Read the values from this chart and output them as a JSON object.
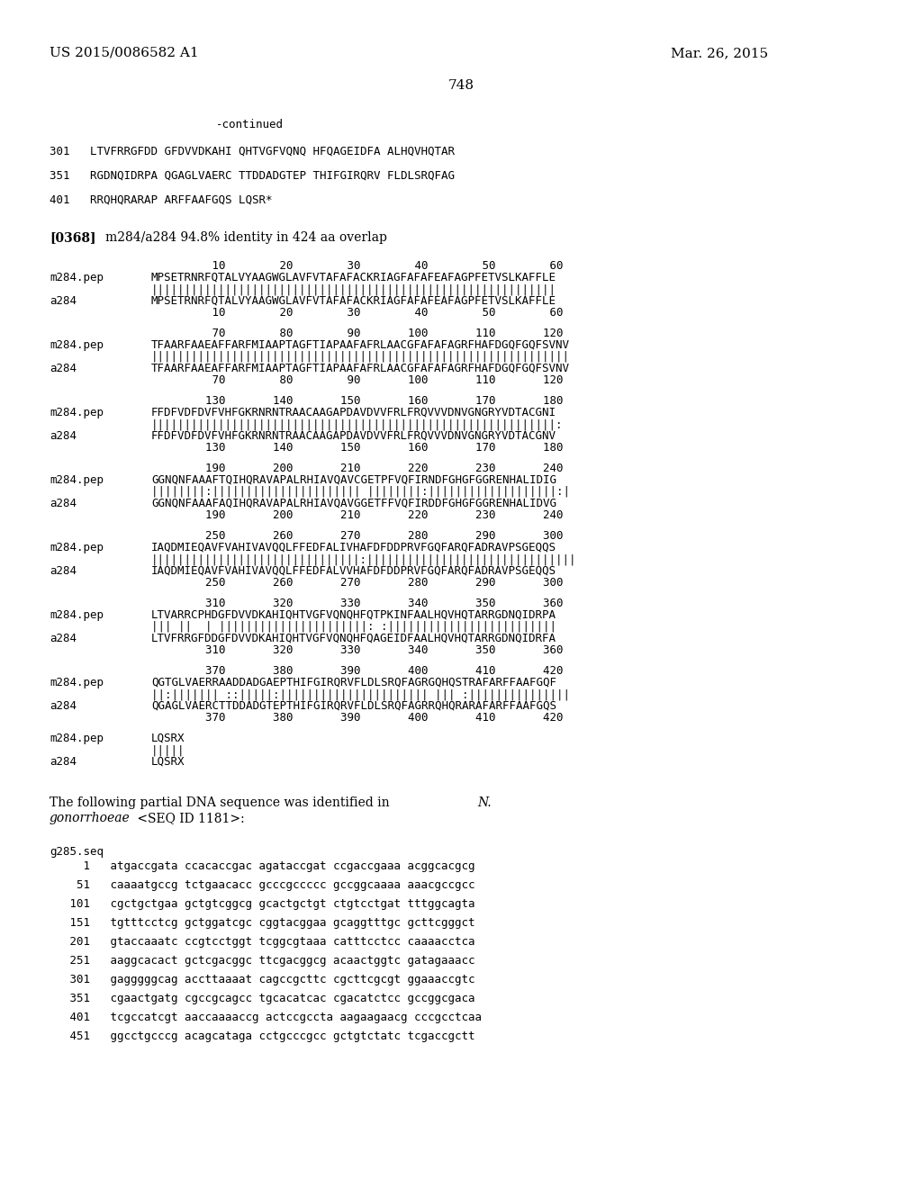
{
  "background_color": "#ffffff",
  "header_left": "US 2015/0086582 A1",
  "header_right": "Mar. 26, 2015",
  "page_number": "748",
  "continued_label": "-continued",
  "seq_lines": [
    "301   LTVFRRGFDD GFDVVDKAHI QHTVGFVQNQ HFQAGEIDFA ALHQVHQTAR",
    "351   RGDNQIDRPA QGAGLVAERC TTDDADGTEP THIFGIRQRV FLDLSRQFAG",
    "401   RRQHQRARAP ARFFAAFGQS LQSR*"
  ],
  "paragraph_label": "[0368]",
  "paragraph_text": "m284/a284 94.8% identity in 424 aa overlap",
  "alignment_blocks": [
    {
      "nums_top": "         10        20        30        40        50        60",
      "line1_label": "m284.pep",
      "line1_seq": "MPSETRNRFQTALVYAAGWGLAVFVTAFAFACKRIAGFAFAFEAFAGPFETVSLKAFFLE",
      "bars": "||||||||||||||||||||||||||||||||||||||||||||||||||||||||||||",
      "line2_label": "a284",
      "line2_seq": "MPSETRNRFQTALVYAAGWGLAVFVTAFAFACKRIAGFAFAFEAFAGPFETVSLKAFFLE",
      "nums_bot": "         10        20        30        40        50        60"
    },
    {
      "nums_top": "         70        80        90       100       110       120",
      "line1_label": "m284.pep",
      "line1_seq": "TFAARFAAEAFFARFMIAAPTAGFTIAPAAFAFRLAACGFAFAFAGRFHAFDGQFGQFSVNV",
      "bars": "||||||||||||||||||||||||||||||||||||||||||||||||||||||||||||||",
      "line2_label": "a284",
      "line2_seq": "TFAARFAAEAFFARFMIAAPTAGFTIAPAAFAFRLAACGFAFAFAGRFHAFDGQFGQFSVNV",
      "nums_bot": "         70        80        90       100       110       120"
    },
    {
      "nums_top": "        130       140       150       160       170       180",
      "line1_label": "m284.pep",
      "line1_seq": "FFDFVDFDVFVHFGKRNRNTRAACAAGAPDAVDVVFRLFRQVVVDNVGNGRYVDTACGNI",
      "bars": "||||||||||||||||||||||||||||||||||||||||||||||||||||||||||||:",
      "line2_label": "a284",
      "line2_seq": "FFDFVDFDVFVHFGKRNRNTRAACAAGAPDAVDVVFRLFRQVVVDNVGNGRYVDTACGNV",
      "nums_bot": "        130       140       150       160       170       180"
    },
    {
      "nums_top": "        190       200       210       220       230       240",
      "line1_label": "m284.pep",
      "line1_seq": "GGNQNFAAAFTQIHQRAVAPALRHIAVQAVCGETPFVQFIRNDFGHGFGGRENHALIDIG",
      "bars": "||||||||:|||||||||||||||||||||| ||||||||:|||||||||||||||||||:|",
      "line2_label": "a284",
      "line2_seq": "GGNQNFAAAFAQIHQRAVAPALRHIAVQAVGGETFFVQFIRDDFGHGFGGRENHALIDVG",
      "nums_bot": "        190       200       210       220       230       240"
    },
    {
      "nums_top": "        250       260       270       280       290       300",
      "line1_label": "m284.pep",
      "line1_seq": "IAQDMIEQAVFVAHIVAVQQLFFEDFALIVHAFDFDDPRVFGQFARQFADRAVPSGEQQS",
      "bars": "|||||||||||||||||||||||||||||||:|||||||||||||||||||||||||||||||",
      "line2_label": "a284",
      "line2_seq": "IAQDMIEQAVFVAHIVAVQQLFFEDFALVVHAFDFDDPRVFGQFARQFADRAVPSGEQQS",
      "nums_bot": "        250       260       270       280       290       300"
    },
    {
      "nums_top": "        310       320       330       340       350       360",
      "line1_label": "m284.pep",
      "line1_seq": "LTVARRCPHDGFDVVDKAHIQHTVGFVQNQHFQTPKINFAALHQVHQTARRGDNQIDRPA",
      "bars": "||| ||  | ||||||||||||||||||||||: :|||||||||||||||||||||||||",
      "line2_label": "a284",
      "line2_seq": "LTVFRRGFDDGFDVVDKAHIQHTVGFVQNQHFQAGEIDFAALHQVHQTARRGDNQIDRFA",
      "nums_bot": "        310       320       330       340       350       360"
    },
    {
      "nums_top": "        370       380       390       400       410       420",
      "line1_label": "m284.pep",
      "line1_seq": "QGTGLVAERRAADDADGAEPTHIFGIRQRVFLDLSRQFAGRGQHQSTRAFARFFAAFGQF",
      "bars": "||:||||||| ::|||||:|||||||||||||||||||||| ||| :|||||||||||||||",
      "line2_label": "a284",
      "line2_seq": "QGAGLVAERCTTDDADGTEPTHIFGIRQRVFLDLSRQFAGRRQHQRARAFARFFAAFGQS",
      "nums_bot": "        370       380       390       400       410       420"
    },
    {
      "nums_top": "",
      "line1_label": "m284.pep",
      "line1_seq": "LQSRX",
      "bars": "|||||",
      "line2_label": "a284",
      "line2_seq": "LQSRX",
      "nums_bot": ""
    }
  ],
  "dna_label": "g285.seq",
  "dna_lines": [
    "     1   atgaccgata ccacaccgac agataccgat ccgaccgaaa acggcacgcg",
    "    51   caaaatgccg tctgaacacc gcccgccccc gccggcaaaa aaacgccgcc",
    "   101   cgctgctgaa gctgtcggcg gcactgctgt ctgtcctgat tttggcagta",
    "   151   tgtttcctcg gctggatcgc cggtacggaa gcaggtttgc gcttcgggct",
    "   201   gtaccaaatc ccgtcctggt tcggcgtaaa catttcctcc caaaacctca",
    "   251   aaggcacact gctcgacggc ttcgacggcg acaactggtc gatagaaacc",
    "   301   gagggggcag accttaaaat cagccgcttc cgcttcgcgt ggaaaccgtc",
    "   351   cgaactgatg cgccgcagcc tgcacatcac cgacatctcc gccggcgaca",
    "   401   tcgccatcgt aaccaaaaccg actccgccta aagaagaacg cccgcctcaa",
    "   451   ggcctgcccg acagcataga cctgcccgcc gctgtctatc tcgaccgctt"
  ]
}
